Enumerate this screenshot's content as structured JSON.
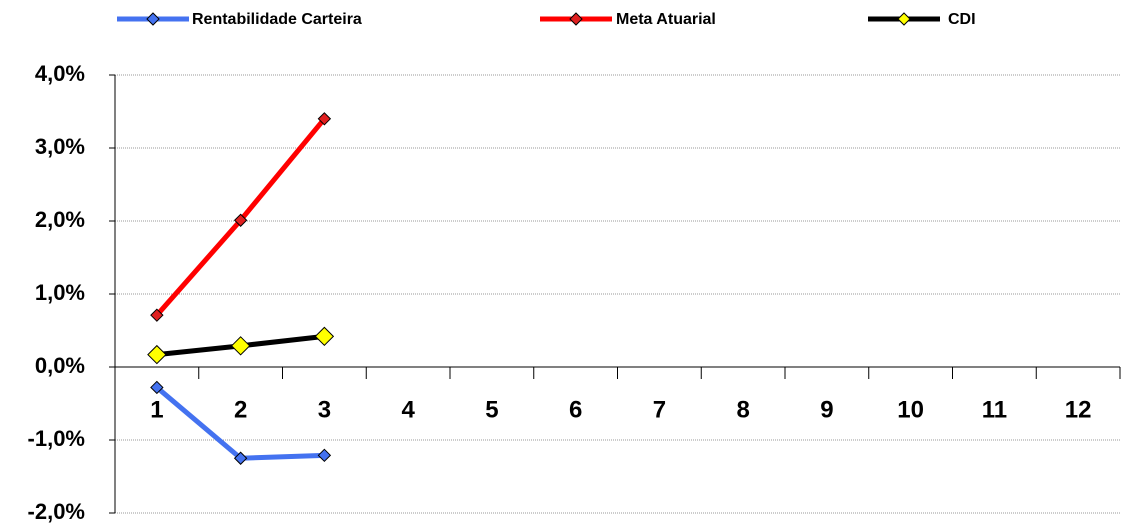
{
  "chart_data": {
    "type": "line",
    "categories": [
      "1",
      "2",
      "3",
      "4",
      "5",
      "6",
      "7",
      "8",
      "9",
      "10",
      "11",
      "12"
    ],
    "series": [
      {
        "name": "Rentabilidade Carteira",
        "color": "#4472f0",
        "marker_color": "#4472f0",
        "values": [
          -0.28,
          -1.25,
          -1.21,
          null,
          null,
          null,
          null,
          null,
          null,
          null,
          null,
          null
        ]
      },
      {
        "name": "Meta Atuarial",
        "color": "#ff0000",
        "marker_color": "#e02020",
        "values": [
          0.71,
          2.01,
          3.4,
          null,
          null,
          null,
          null,
          null,
          null,
          null,
          null,
          null
        ]
      },
      {
        "name": "CDI",
        "color": "#000000",
        "marker_color": "#ffff00",
        "values": [
          0.17,
          0.29,
          0.42,
          null,
          null,
          null,
          null,
          null,
          null,
          null,
          null,
          null
        ]
      }
    ],
    "ylim": [
      -2,
      4
    ],
    "yticks": [
      {
        "value": -2,
        "label": "-2,0%"
      },
      {
        "value": -1,
        "label": "-1,0%"
      },
      {
        "value": 0,
        "label": "0,0%"
      },
      {
        "value": 1,
        "label": "1,0%"
      },
      {
        "value": 2,
        "label": "2,0%"
      },
      {
        "value": 3,
        "label": "3,0%"
      },
      {
        "value": 4,
        "label": "4,0%"
      }
    ],
    "grid": true
  }
}
